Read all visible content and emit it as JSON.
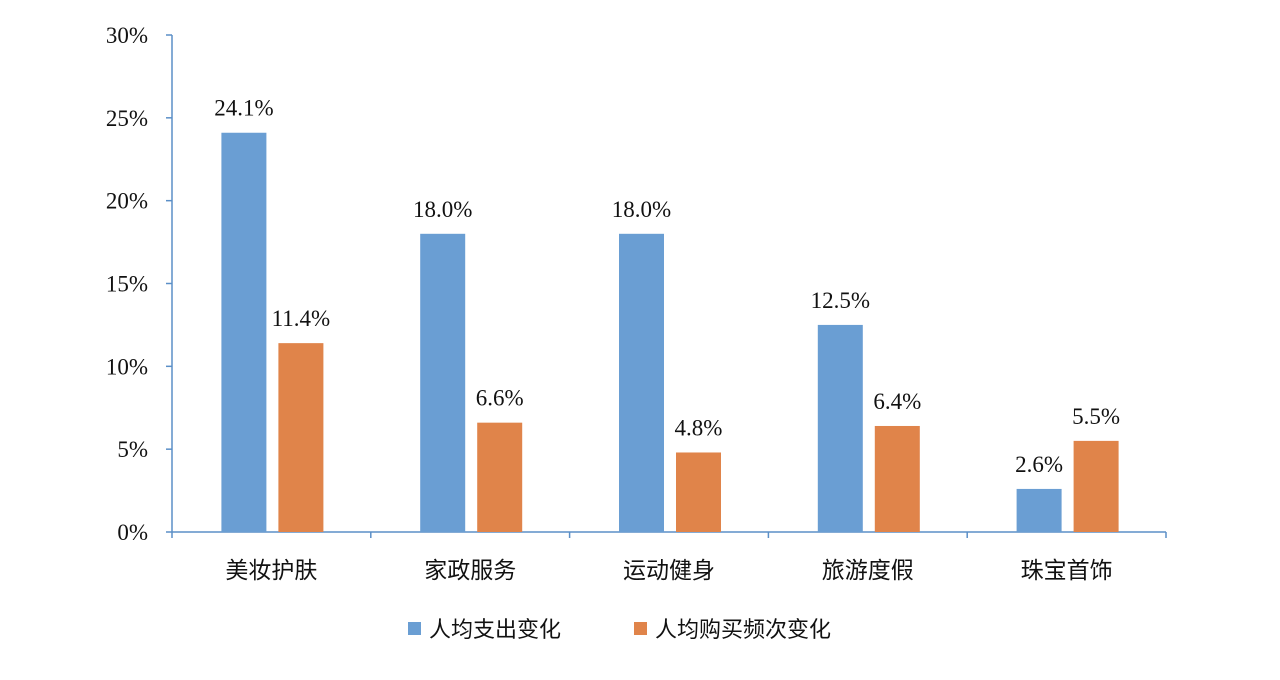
{
  "chart_data": {
    "type": "bar",
    "categories": [
      "美妆护肤",
      "家政服务",
      "运动健身",
      "旅游度假",
      "珠宝首饰"
    ],
    "series": [
      {
        "name": "人均支出变化",
        "color": "#6a9ed3",
        "values": [
          24.1,
          18.0,
          18.0,
          12.5,
          2.6
        ],
        "labels": [
          "24.1%",
          "18.0%",
          "18.0%",
          "12.5%",
          "2.6%"
        ]
      },
      {
        "name": "人均购买频次变化",
        "color": "#e0844a",
        "values": [
          11.4,
          6.6,
          4.8,
          6.4,
          5.5
        ],
        "labels": [
          "11.4%",
          "6.6%",
          "4.8%",
          "6.4%",
          "5.5%"
        ]
      }
    ],
    "y_ticks": [
      "0%",
      "5%",
      "10%",
      "15%",
      "20%",
      "25%",
      "30%"
    ],
    "ylim": [
      0,
      30
    ],
    "y_tick_step": 5,
    "grid": false,
    "legend_position": "bottom"
  }
}
